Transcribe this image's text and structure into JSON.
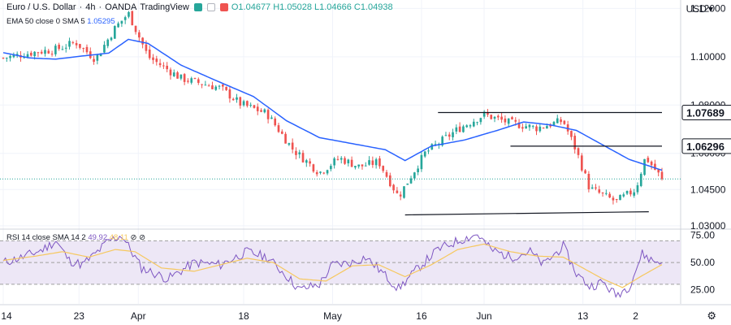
{
  "header": {
    "symbol": "Euro / U.S. Dollar",
    "interval": "4h",
    "broker": "OANDA",
    "platform": "TradingView",
    "separator": "·",
    "ohlc": "O1.04677 H1.05028 L1.04666 C1.04938",
    "currency": "USD",
    "currency_caret": "▾"
  },
  "indicators": {
    "ema_label": "EMA 50 close 0 SMA 5",
    "ema_value": "1.05295",
    "rsi_label": "RSI 14 close SMA 14 2",
    "rsi_value": "49.92",
    "rsi_sma_value": "48.11",
    "rsi_icons": "⊘ ⊘"
  },
  "colors": {
    "bull": "#26a69a",
    "bear": "#ef5350",
    "ema": "#2962ff",
    "rsi": "#7e57c2",
    "rsi_sma": "#f6c85f",
    "rsi_band": "#ede7f6",
    "grid": "#f0f3fa",
    "text": "#131722"
  },
  "chart_data": [
    {
      "type": "candlestick",
      "title": "Euro / U.S. Dollar, 4h, OANDA",
      "y_axis_ticks": [
        "1.12000",
        "1.10000",
        "1.08000",
        "1.06000",
        "1.04500",
        "1.03000"
      ],
      "y_axis_tick_values": [
        1.12,
        1.1,
        1.08,
        1.06,
        1.045,
        1.03
      ],
      "ylim": [
        1.0286,
        1.1235
      ],
      "x_axis_ticks": [
        "14",
        "23",
        "Apr",
        "18",
        "May",
        "16",
        "Jun",
        "13",
        "2"
      ],
      "price_labels": [
        {
          "text": "1.07689",
          "value": 1.07689
        },
        {
          "text": "1.06296",
          "value": 1.06296
        }
      ],
      "current_price": 1.04938,
      "ema50_path": [
        {
          "t": 0,
          "v": 1.1017
        },
        {
          "t": 0.04,
          "v": 1.0995
        },
        {
          "t": 0.08,
          "v": 1.099
        },
        {
          "t": 0.12,
          "v": 1.1003
        },
        {
          "t": 0.16,
          "v": 1.1015
        },
        {
          "t": 0.19,
          "v": 1.1072
        },
        {
          "t": 0.22,
          "v": 1.1055
        },
        {
          "t": 0.27,
          "v": 1.0965
        },
        {
          "t": 0.32,
          "v": 1.0905
        },
        {
          "t": 0.38,
          "v": 1.0835
        },
        {
          "t": 0.43,
          "v": 1.0735
        },
        {
          "t": 0.48,
          "v": 1.0665
        },
        {
          "t": 0.53,
          "v": 1.064
        },
        {
          "t": 0.58,
          "v": 1.0615
        },
        {
          "t": 0.61,
          "v": 1.057
        },
        {
          "t": 0.65,
          "v": 1.063
        },
        {
          "t": 0.7,
          "v": 1.0655
        },
        {
          "t": 0.75,
          "v": 1.0695
        },
        {
          "t": 0.79,
          "v": 1.073
        },
        {
          "t": 0.83,
          "v": 1.0718
        },
        {
          "t": 0.87,
          "v": 1.0695
        },
        {
          "t": 0.91,
          "v": 1.0635
        },
        {
          "t": 0.95,
          "v": 1.0575
        },
        {
          "t": 1.0,
          "v": 1.053
        }
      ],
      "candle_anchor_path": [
        {
          "t": 0,
          "v": 1.0995
        },
        {
          "t": 0.05,
          "v": 1.102
        },
        {
          "t": 0.08,
          "v": 1.103
        },
        {
          "t": 0.11,
          "v": 1.106
        },
        {
          "t": 0.14,
          "v": 1.099
        },
        {
          "t": 0.17,
          "v": 1.112
        },
        {
          "t": 0.19,
          "v": 1.118
        },
        {
          "t": 0.22,
          "v": 1.1
        },
        {
          "t": 0.27,
          "v": 1.091
        },
        {
          "t": 0.33,
          "v": 1.087
        },
        {
          "t": 0.36,
          "v": 1.0805
        },
        {
          "t": 0.4,
          "v": 1.0765
        },
        {
          "t": 0.44,
          "v": 1.0615
        },
        {
          "t": 0.48,
          "v": 1.052
        },
        {
          "t": 0.51,
          "v": 1.058
        },
        {
          "t": 0.54,
          "v": 1.0545
        },
        {
          "t": 0.57,
          "v": 1.0565
        },
        {
          "t": 0.6,
          "v": 1.042
        },
        {
          "t": 0.64,
          "v": 1.06
        },
        {
          "t": 0.69,
          "v": 1.07
        },
        {
          "t": 0.73,
          "v": 1.076
        },
        {
          "t": 0.77,
          "v": 1.0725
        },
        {
          "t": 0.81,
          "v": 1.0705
        },
        {
          "t": 0.85,
          "v": 1.0735
        },
        {
          "t": 0.87,
          "v": 1.061
        },
        {
          "t": 0.89,
          "v": 1.0455
        },
        {
          "t": 0.93,
          "v": 1.04
        },
        {
          "t": 0.96,
          "v": 1.045
        },
        {
          "t": 0.975,
          "v": 1.0585
        },
        {
          "t": 1.0,
          "v": 1.0494
        }
      ],
      "trendlines": [
        {
          "name": "resistance",
          "from": {
            "t": 0.66,
            "v": 1.07689
          },
          "to": {
            "t": 1.0,
            "v": 1.07689
          }
        },
        {
          "name": "neckline",
          "from": {
            "t": 0.77,
            "v": 1.06296
          },
          "to": {
            "t": 1.0,
            "v": 1.06296
          }
        },
        {
          "name": "support",
          "from": {
            "t": 0.61,
            "v": 1.0345
          },
          "to": {
            "t": 0.98,
            "v": 1.0358
          }
        }
      ]
    },
    {
      "type": "line",
      "title": "RSI 14 close SMA 14 2",
      "y_axis_ticks": [
        "75.00",
        "50.00",
        "25.00"
      ],
      "y_axis_tick_values": [
        75,
        50,
        25
      ],
      "ylim": [
        12,
        80
      ],
      "band": [
        30,
        70
      ],
      "rsi_path": [
        {
          "t": 0,
          "v": 50
        },
        {
          "t": 0.03,
          "v": 55
        },
        {
          "t": 0.06,
          "v": 62
        },
        {
          "t": 0.08,
          "v": 70
        },
        {
          "t": 0.1,
          "v": 52
        },
        {
          "t": 0.12,
          "v": 48
        },
        {
          "t": 0.14,
          "v": 58
        },
        {
          "t": 0.16,
          "v": 70
        },
        {
          "t": 0.18,
          "v": 75
        },
        {
          "t": 0.21,
          "v": 45
        },
        {
          "t": 0.25,
          "v": 35
        },
        {
          "t": 0.29,
          "v": 50
        },
        {
          "t": 0.33,
          "v": 48
        },
        {
          "t": 0.37,
          "v": 60
        },
        {
          "t": 0.4,
          "v": 55
        },
        {
          "t": 0.43,
          "v": 38
        },
        {
          "t": 0.45,
          "v": 25
        },
        {
          "t": 0.48,
          "v": 30
        },
        {
          "t": 0.5,
          "v": 48
        },
        {
          "t": 0.53,
          "v": 50
        },
        {
          "t": 0.55,
          "v": 55
        },
        {
          "t": 0.57,
          "v": 44
        },
        {
          "t": 0.6,
          "v": 26
        },
        {
          "t": 0.63,
          "v": 45
        },
        {
          "t": 0.66,
          "v": 62
        },
        {
          "t": 0.69,
          "v": 70
        },
        {
          "t": 0.72,
          "v": 76
        },
        {
          "t": 0.74,
          "v": 62
        },
        {
          "t": 0.77,
          "v": 55
        },
        {
          "t": 0.8,
          "v": 60
        },
        {
          "t": 0.82,
          "v": 48
        },
        {
          "t": 0.85,
          "v": 65
        },
        {
          "t": 0.87,
          "v": 40
        },
        {
          "t": 0.89,
          "v": 28
        },
        {
          "t": 0.91,
          "v": 32
        },
        {
          "t": 0.93,
          "v": 20
        },
        {
          "t": 0.95,
          "v": 28
        },
        {
          "t": 0.97,
          "v": 58
        },
        {
          "t": 0.985,
          "v": 52
        },
        {
          "t": 1.0,
          "v": 49.92
        }
      ],
      "sma_path": [
        {
          "t": 0,
          "v": 52
        },
        {
          "t": 0.05,
          "v": 56
        },
        {
          "t": 0.09,
          "v": 60
        },
        {
          "t": 0.13,
          "v": 55
        },
        {
          "t": 0.17,
          "v": 62
        },
        {
          "t": 0.2,
          "v": 60
        },
        {
          "t": 0.24,
          "v": 45
        },
        {
          "t": 0.29,
          "v": 42
        },
        {
          "t": 0.33,
          "v": 48
        },
        {
          "t": 0.37,
          "v": 54
        },
        {
          "t": 0.41,
          "v": 50
        },
        {
          "t": 0.45,
          "v": 35
        },
        {
          "t": 0.49,
          "v": 33
        },
        {
          "t": 0.53,
          "v": 47
        },
        {
          "t": 0.57,
          "v": 48
        },
        {
          "t": 0.61,
          "v": 37
        },
        {
          "t": 0.65,
          "v": 48
        },
        {
          "t": 0.69,
          "v": 62
        },
        {
          "t": 0.73,
          "v": 67
        },
        {
          "t": 0.77,
          "v": 60
        },
        {
          "t": 0.81,
          "v": 56
        },
        {
          "t": 0.85,
          "v": 55
        },
        {
          "t": 0.88,
          "v": 45
        },
        {
          "t": 0.91,
          "v": 35
        },
        {
          "t": 0.94,
          "v": 27
        },
        {
          "t": 0.97,
          "v": 38
        },
        {
          "t": 1.0,
          "v": 48.11
        }
      ]
    }
  ]
}
